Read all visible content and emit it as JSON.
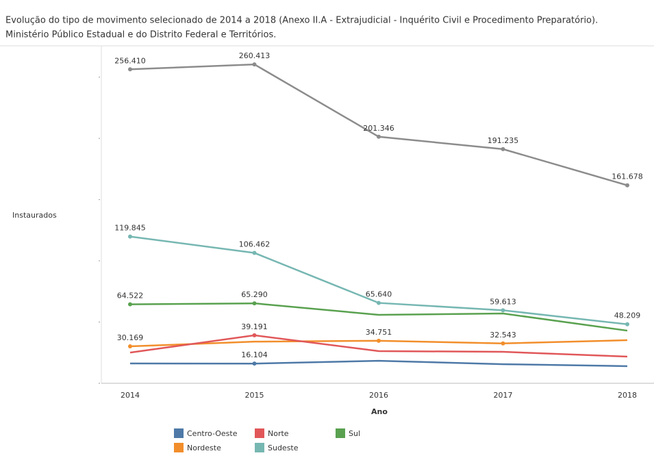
{
  "chart_data": {
    "type": "line",
    "title": [
      "Evolução do tipo de movimento selecionado de 2014 a 2018 (Anexo II.A - Extrajudicial - Inquérito Civil e Procedimento Preparatório).",
      "Ministério Público Estadual e do Distrito Federal e Territórios."
    ],
    "y_label": "Instaurados",
    "x_label": "Ano",
    "categories": [
      "2014",
      "2015",
      "2016",
      "2017",
      "2018"
    ],
    "ylim": [
      0,
      275000
    ],
    "yticks": [
      0,
      50000,
      100000,
      150000,
      200000,
      250000
    ],
    "series": [
      {
        "color": "#8c8c8c",
        "values": [
          256410,
          260413,
          201346,
          191235,
          161678
        ],
        "value_labels": [
          "256.410",
          "260.413",
          "201.346",
          "191.235",
          "161.678"
        ]
      },
      {
        "name": "Centro-Oeste",
        "color": "#4e79a7",
        "values": [
          16200,
          16104,
          18400,
          15600,
          14000
        ],
        "value_labels": [
          null,
          "16.104",
          null,
          null,
          null
        ]
      },
      {
        "name": "Nordeste",
        "color": "#f28e2b",
        "values": [
          30169,
          34000,
          34751,
          32543,
          35200
        ],
        "value_labels": [
          "30.169",
          null,
          "34.751",
          "32.543",
          null
        ]
      },
      {
        "name": "Norte",
        "color": "#e15759",
        "values": [
          25100,
          39191,
          26300,
          25700,
          21800
        ],
        "value_labels": [
          null,
          "39.191",
          null,
          null,
          null
        ]
      },
      {
        "name": "Sudeste",
        "color": "#76b7b2",
        "values": [
          119845,
          106462,
          65640,
          59613,
          48209
        ],
        "value_labels": [
          "119.845",
          "106.462",
          "65.640",
          "59.613",
          "48.209"
        ]
      },
      {
        "name": "Sul",
        "color": "#59a14f",
        "values": [
          64522,
          65290,
          55900,
          57000,
          43000
        ],
        "value_labels": [
          "64.522",
          "65.290",
          null,
          null,
          null
        ]
      }
    ]
  }
}
